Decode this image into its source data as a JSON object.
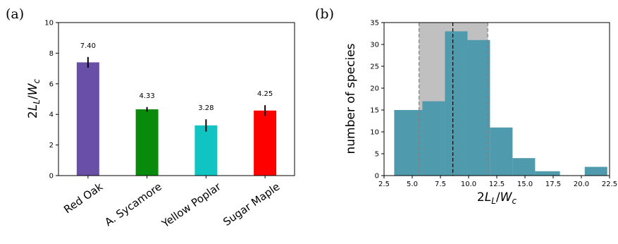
{
  "chart_data": [
    {
      "panel_label": "(a)",
      "type": "bar",
      "categories": [
        "Red Oak",
        "A. Sycamore",
        "Yellow Poplar",
        "Sugar Maple"
      ],
      "values": [
        7.4,
        4.33,
        3.28,
        4.25
      ],
      "value_labels": [
        "7.40",
        "4.33",
        "3.28",
        "4.25"
      ],
      "errors": [
        0.35,
        0.15,
        0.4,
        0.35
      ],
      "colors": [
        "#6a4fa8",
        "#0a8a0a",
        "#10c4c4",
        "#ff0000"
      ],
      "ylabel": "2L_L/W_c",
      "ylim": [
        0,
        10
      ],
      "yticks": [
        0,
        2,
        4,
        6,
        8,
        10
      ],
      "ytick_labels": [
        "0",
        "2",
        "4",
        "6",
        "8",
        "10"
      ]
    },
    {
      "panel_label": "(b)",
      "type": "histogram",
      "bins": [
        {
          "x0": 3.4,
          "x1": 5.9,
          "count": 15
        },
        {
          "x0": 5.9,
          "x1": 7.9,
          "count": 17
        },
        {
          "x0": 7.9,
          "x1": 9.9,
          "count": 33
        },
        {
          "x0": 9.9,
          "x1": 11.9,
          "count": 31
        },
        {
          "x0": 11.9,
          "x1": 13.9,
          "count": 11
        },
        {
          "x0": 13.9,
          "x1": 15.9,
          "count": 4
        },
        {
          "x0": 15.9,
          "x1": 18.1,
          "count": 1
        },
        {
          "x0": 20.3,
          "x1": 22.3,
          "count": 2
        }
      ],
      "bar_color": "#4f9aad",
      "shaded_band": {
        "x0": 5.6,
        "x1": 11.7,
        "color": "#c0c0c0"
      },
      "dashed_lines": [
        {
          "x": 5.6,
          "color": "#808080"
        },
        {
          "x": 8.6,
          "color": "#000000"
        },
        {
          "x": 11.7,
          "color": "#808080"
        }
      ],
      "xlabel": "2L_L/W_c",
      "ylabel": "number of species",
      "xlim": [
        2.5,
        22.5
      ],
      "ylim": [
        0,
        35
      ],
      "xticks": [
        2.5,
        5,
        7.5,
        10,
        12.5,
        15,
        17.5,
        20,
        22.5
      ],
      "xtick_labels": [
        "2.5",
        "5.0",
        "7.5",
        "10.0",
        "12.5",
        "15.0",
        "17.5",
        "20.0",
        "22.5"
      ],
      "yticks": [
        0,
        5,
        10,
        15,
        20,
        25,
        30,
        35
      ],
      "ytick_labels": [
        "0",
        "5",
        "10",
        "15",
        "20",
        "25",
        "30",
        "35"
      ]
    }
  ]
}
